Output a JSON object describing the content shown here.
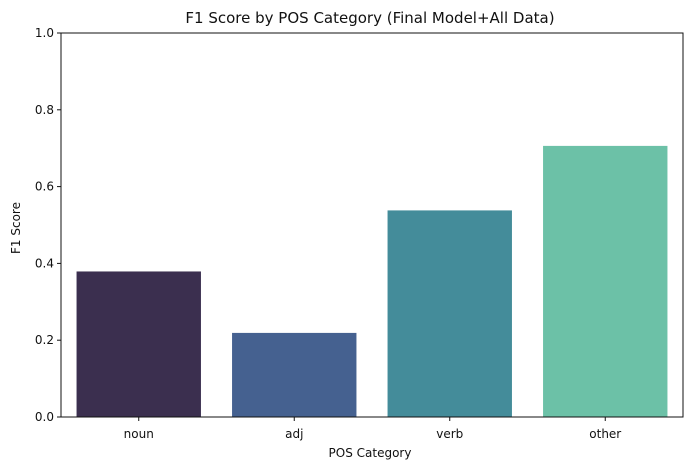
{
  "chart_data": {
    "type": "bar",
    "title": "F1 Score by POS Category (Final Model+All Data)",
    "xlabel": "POS Category",
    "ylabel": "F1 Score",
    "categories": [
      "noun",
      "adj",
      "verb",
      "other"
    ],
    "values": [
      0.379,
      0.219,
      0.538,
      0.706
    ],
    "colors": [
      "#3b2f4f",
      "#456190",
      "#448c9a",
      "#6cc1a7"
    ],
    "ylim": [
      0,
      1
    ],
    "yticks": [
      "0.0",
      "0.2",
      "0.4",
      "0.6",
      "0.8",
      "1.0"
    ],
    "grid": false
  }
}
